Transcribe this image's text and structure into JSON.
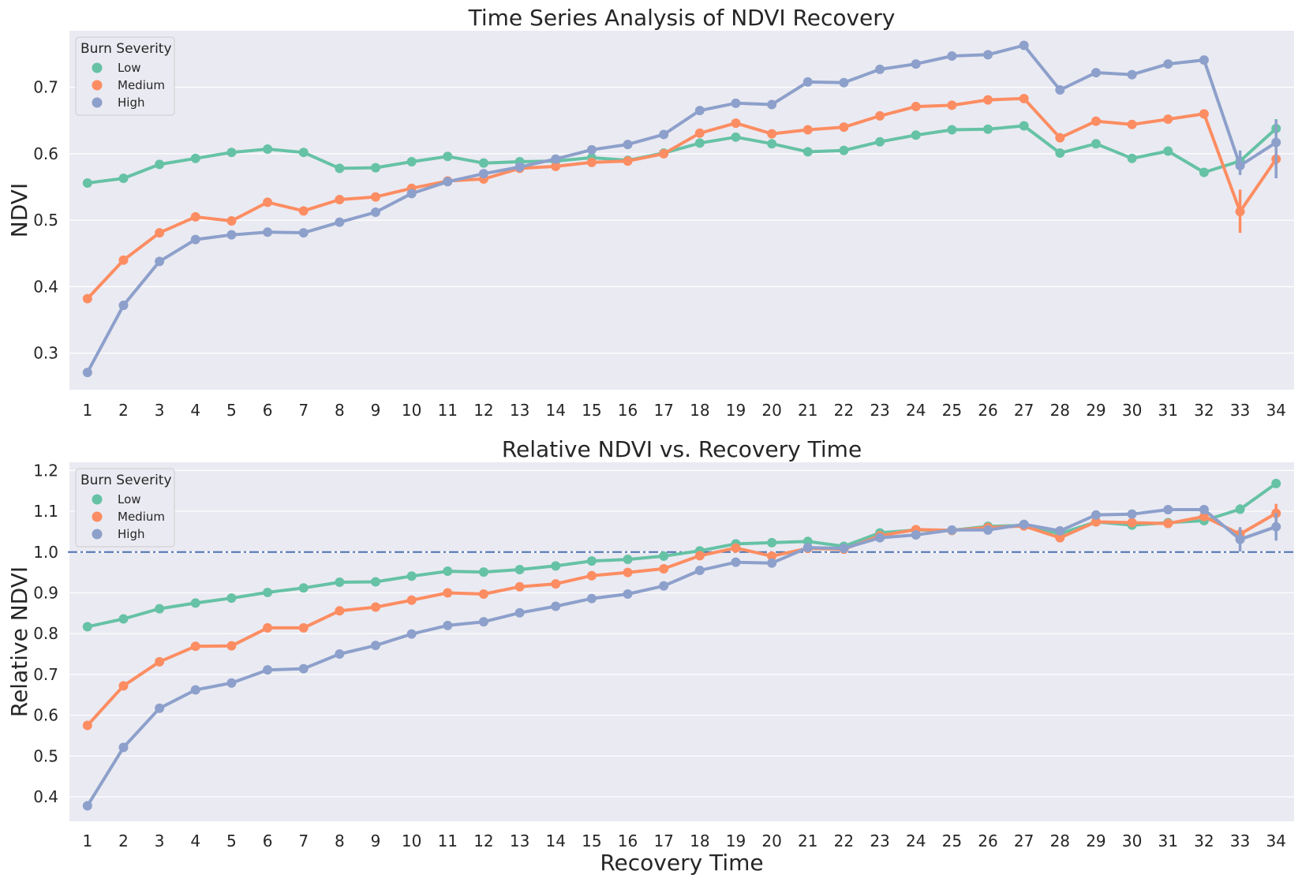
{
  "colors": {
    "Low": "#66c2a5",
    "Medium": "#fc8d62",
    "High": "#8da0cb",
    "plot_background": "#eaeaf2",
    "grid": "#ffffff",
    "reference_line": "#4c72b0"
  },
  "chart_data": [
    {
      "type": "line",
      "title": "Time Series Analysis of NDVI Recovery",
      "xlabel": "",
      "ylabel": "NDVI",
      "ylim": [
        0.245,
        0.785
      ],
      "yticks": [
        0.3,
        0.4,
        0.5,
        0.6,
        0.7
      ],
      "grid": true,
      "legend": {
        "title": "Burn Severity",
        "placement": "top-left",
        "entries": [
          "Low",
          "Medium",
          "High"
        ]
      },
      "categories": [
        "1",
        "2",
        "3",
        "4",
        "5",
        "6",
        "7",
        "8",
        "9",
        "10",
        "11",
        "12",
        "13",
        "14",
        "15",
        "16",
        "17",
        "18",
        "19",
        "20",
        "21",
        "22",
        "23",
        "24",
        "25",
        "26",
        "27",
        "28",
        "29",
        "30",
        "31",
        "32",
        "33",
        "34"
      ],
      "series": [
        {
          "name": "Low",
          "values": [
            0.556,
            0.563,
            0.584,
            0.593,
            0.602,
            0.607,
            0.602,
            0.578,
            0.579,
            0.588,
            0.596,
            0.586,
            0.588,
            0.589,
            0.594,
            0.59,
            0.601,
            0.616,
            0.625,
            0.615,
            0.603,
            0.605,
            0.618,
            0.628,
            0.636,
            0.637,
            0.642,
            0.601,
            0.615,
            0.593,
            0.604,
            0.572,
            0.589,
            0.638
          ],
          "error": [
            null,
            null,
            null,
            null,
            null,
            null,
            null,
            null,
            null,
            null,
            null,
            null,
            null,
            null,
            null,
            null,
            null,
            null,
            null,
            null,
            null,
            null,
            null,
            null,
            null,
            null,
            null,
            null,
            null,
            null,
            [
              0.6,
              0.608
            ],
            [
              0.567,
              0.577
            ],
            [
              0.582,
              0.597
            ],
            [
              0.623,
              0.652
            ]
          ]
        },
        {
          "name": "Medium",
          "values": [
            0.382,
            0.44,
            0.481,
            0.505,
            0.499,
            0.527,
            0.514,
            0.531,
            0.535,
            0.548,
            0.559,
            0.562,
            0.578,
            0.581,
            0.587,
            0.589,
            0.6,
            0.631,
            0.646,
            0.63,
            0.636,
            0.64,
            0.657,
            0.671,
            0.673,
            0.681,
            0.683,
            0.624,
            0.649,
            0.644,
            0.652,
            0.66,
            0.513,
            0.592
          ],
          "error": [
            null,
            null,
            null,
            null,
            null,
            null,
            null,
            null,
            null,
            null,
            null,
            null,
            null,
            null,
            null,
            null,
            null,
            null,
            null,
            null,
            null,
            null,
            null,
            null,
            null,
            null,
            null,
            null,
            null,
            null,
            null,
            [
              0.654,
              0.666
            ],
            [
              0.481,
              0.546
            ],
            [
              0.573,
              0.611
            ]
          ]
        },
        {
          "name": "High",
          "values": [
            0.271,
            0.372,
            0.438,
            0.471,
            0.478,
            0.482,
            0.481,
            0.497,
            0.512,
            0.54,
            0.558,
            0.57,
            0.58,
            0.592,
            0.606,
            0.614,
            0.629,
            0.665,
            0.676,
            0.674,
            0.708,
            0.707,
            0.727,
            0.735,
            0.747,
            0.749,
            0.763,
            0.696,
            0.722,
            0.719,
            0.735,
            0.741,
            0.582,
            0.617
          ],
          "error": [
            null,
            null,
            null,
            null,
            null,
            null,
            null,
            null,
            null,
            null,
            null,
            null,
            null,
            null,
            null,
            null,
            null,
            null,
            null,
            null,
            null,
            null,
            null,
            null,
            null,
            null,
            null,
            null,
            null,
            null,
            null,
            null,
            [
              0.568,
              0.605
            ],
            [
              0.563,
              0.651
            ]
          ]
        }
      ]
    },
    {
      "type": "line",
      "title": "Relative NDVI vs. Recovery Time",
      "xlabel": "Recovery Time",
      "ylabel": "Relative NDVI",
      "ylim": [
        0.34,
        1.22
      ],
      "yticks": [
        0.4,
        0.5,
        0.6,
        0.7,
        0.8,
        0.9,
        1.0,
        1.1,
        1.2
      ],
      "grid": true,
      "reference_line": {
        "y": 1.0,
        "style": "dash-dot"
      },
      "legend": {
        "title": "Burn Severity",
        "placement": "top-left",
        "entries": [
          "Low",
          "Medium",
          "High"
        ]
      },
      "categories": [
        "1",
        "2",
        "3",
        "4",
        "5",
        "6",
        "7",
        "8",
        "9",
        "10",
        "11",
        "12",
        "13",
        "14",
        "15",
        "16",
        "17",
        "18",
        "19",
        "20",
        "21",
        "22",
        "23",
        "24",
        "25",
        "26",
        "27",
        "28",
        "29",
        "30",
        "31",
        "32",
        "33",
        "34"
      ],
      "series": [
        {
          "name": "Low",
          "values": [
            0.817,
            0.836,
            0.861,
            0.875,
            0.887,
            0.901,
            0.912,
            0.926,
            0.927,
            0.941,
            0.953,
            0.951,
            0.957,
            0.966,
            0.978,
            0.982,
            0.99,
            1.003,
            1.02,
            1.023,
            1.026,
            1.014,
            1.047,
            1.054,
            1.053,
            1.063,
            1.065,
            1.045,
            1.074,
            1.066,
            1.072,
            1.077,
            1.105,
            1.168
          ],
          "error": [
            null,
            null,
            null,
            null,
            null,
            null,
            null,
            null,
            null,
            null,
            null,
            null,
            null,
            null,
            null,
            null,
            null,
            null,
            null,
            null,
            null,
            null,
            null,
            null,
            null,
            null,
            null,
            null,
            null,
            null,
            null,
            null,
            [
              1.095,
              1.117
            ],
            [
              1.16,
              1.176
            ]
          ]
        },
        {
          "name": "Medium",
          "values": [
            0.575,
            0.672,
            0.731,
            0.769,
            0.77,
            0.814,
            0.814,
            0.856,
            0.865,
            0.882,
            0.9,
            0.897,
            0.915,
            0.922,
            0.942,
            0.95,
            0.959,
            0.991,
            1.01,
            0.99,
            1.009,
            1.007,
            1.04,
            1.055,
            1.053,
            1.06,
            1.064,
            1.035,
            1.074,
            1.072,
            1.07,
            1.087,
            1.044,
            1.095
          ],
          "error": [
            null,
            null,
            null,
            null,
            null,
            null,
            null,
            null,
            null,
            null,
            null,
            null,
            null,
            null,
            null,
            null,
            null,
            null,
            null,
            null,
            null,
            null,
            null,
            null,
            null,
            null,
            null,
            null,
            null,
            null,
            null,
            [
              1.08,
              1.095
            ],
            [
              1.03,
              1.058
            ],
            [
              1.075,
              1.118
            ]
          ]
        },
        {
          "name": "High",
          "values": [
            0.378,
            0.521,
            0.617,
            0.662,
            0.679,
            0.711,
            0.714,
            0.75,
            0.771,
            0.799,
            0.82,
            0.829,
            0.851,
            0.867,
            0.886,
            0.897,
            0.917,
            0.955,
            0.975,
            0.973,
            1.011,
            1.009,
            1.035,
            1.042,
            1.054,
            1.054,
            1.068,
            1.052,
            1.091,
            1.093,
            1.104,
            1.104,
            1.031,
            1.062
          ],
          "error": [
            null,
            null,
            null,
            null,
            null,
            null,
            null,
            null,
            null,
            null,
            null,
            null,
            null,
            null,
            null,
            null,
            null,
            null,
            null,
            null,
            null,
            null,
            null,
            null,
            null,
            null,
            null,
            null,
            null,
            null,
            null,
            null,
            [
              1.001,
              1.061
            ],
            [
              1.028,
              1.096
            ]
          ]
        }
      ]
    }
  ]
}
